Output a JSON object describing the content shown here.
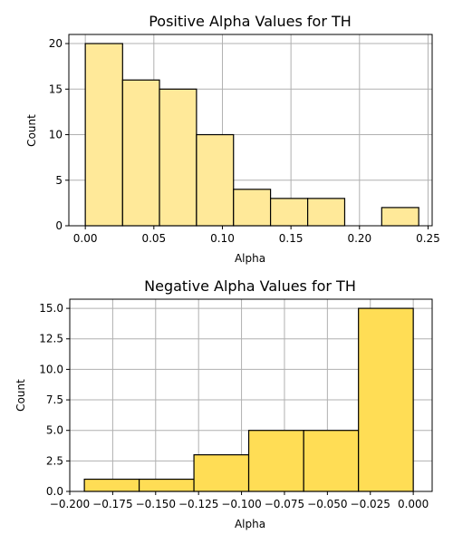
{
  "chart_data": [
    {
      "type": "bar",
      "title": "Positive Alpha Values for TH",
      "xlabel": "Alpha",
      "ylabel": "Count",
      "bar_color": "#ffe999",
      "grid": true,
      "xlim": [
        -0.012,
        0.253
      ],
      "ylim": [
        0,
        21
      ],
      "xticks": [
        0.0,
        0.05,
        0.1,
        0.15,
        0.2,
        0.25
      ],
      "xtick_labels": [
        "0.00",
        "0.05",
        "0.10",
        "0.15",
        "0.20",
        "0.25"
      ],
      "yticks": [
        0,
        5,
        10,
        15,
        20
      ],
      "ytick_labels": [
        "0",
        "5",
        "10",
        "15",
        "20"
      ],
      "bins": [
        {
          "x0": 0.0,
          "x1": 0.0272,
          "count": 20
        },
        {
          "x0": 0.0272,
          "x1": 0.0541,
          "count": 16
        },
        {
          "x0": 0.0541,
          "x1": 0.0811,
          "count": 15
        },
        {
          "x0": 0.0811,
          "x1": 0.1081,
          "count": 10
        },
        {
          "x0": 0.1081,
          "x1": 0.1351,
          "count": 4
        },
        {
          "x0": 0.1351,
          "x1": 0.1622,
          "count": 3
        },
        {
          "x0": 0.1622,
          "x1": 0.1892,
          "count": 3
        },
        {
          "x0": 0.1892,
          "x1": 0.2162,
          "count": 0
        },
        {
          "x0": 0.2162,
          "x1": 0.2432,
          "count": 2
        }
      ]
    },
    {
      "type": "bar",
      "title": "Negative Alpha Values for TH",
      "xlabel": "Alpha",
      "ylabel": "Count",
      "bar_color": "#ffdd55",
      "grid": true,
      "xlim": [
        -0.2,
        0.011
      ],
      "ylim": [
        0,
        15.75
      ],
      "xticks": [
        -0.2,
        -0.175,
        -0.15,
        -0.125,
        -0.1,
        -0.075,
        -0.05,
        -0.025,
        0.0
      ],
      "xtick_labels": [
        "−0.200",
        "−0.175",
        "−0.150",
        "−0.125",
        "−0.100",
        "−0.075",
        "−0.050",
        "−0.025",
        "0.000"
      ],
      "yticks": [
        0,
        2.5,
        5,
        7.5,
        10,
        12.5,
        15
      ],
      "ytick_labels": [
        "0.0",
        "2.5",
        "5.0",
        "7.5",
        "10.0",
        "12.5",
        "15.0"
      ],
      "bins": [
        {
          "x0": -0.1915,
          "x1": -0.1596,
          "count": 1
        },
        {
          "x0": -0.1596,
          "x1": -0.1277,
          "count": 1
        },
        {
          "x0": -0.1277,
          "x1": -0.0958,
          "count": 3
        },
        {
          "x0": -0.0958,
          "x1": -0.0638,
          "count": 5
        },
        {
          "x0": -0.0638,
          "x1": -0.0319,
          "count": 5
        },
        {
          "x0": -0.0319,
          "x1": 0.0,
          "count": 15
        }
      ]
    }
  ]
}
